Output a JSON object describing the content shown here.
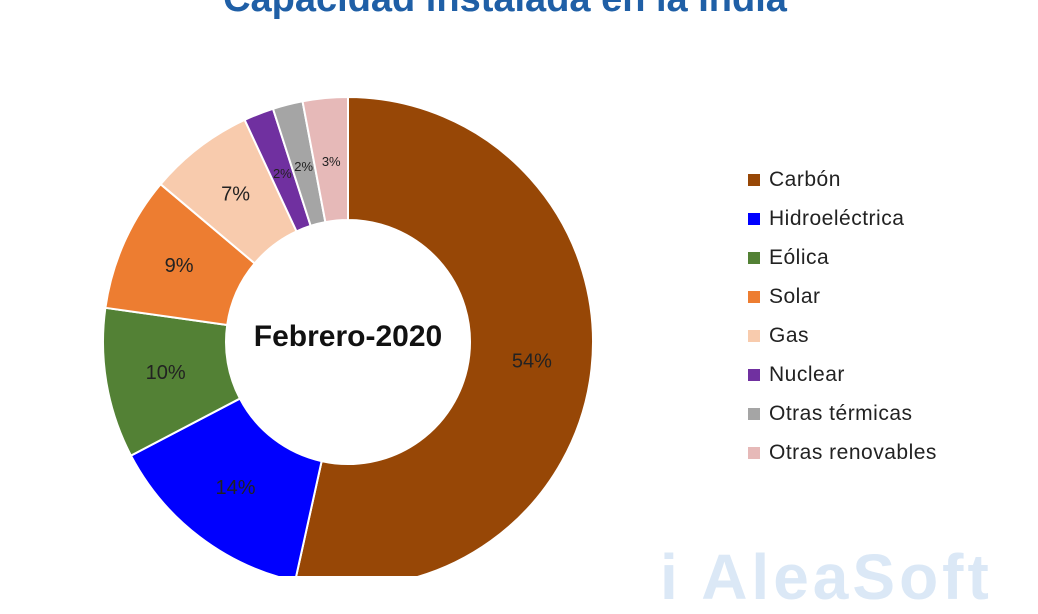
{
  "title": "Capacidad instalada en la India",
  "center_label": "Febrero-2020",
  "watermark_text": "i AleaSoft",
  "chart_data": {
    "type": "pie",
    "style": "donut",
    "title": "Capacidad instalada en la India",
    "center_label": "Febrero-2020",
    "legend_position": "right",
    "slices": [
      {
        "name": "Carbón",
        "value": 54,
        "label": "54%",
        "color": "#974706"
      },
      {
        "name": "Hidroeléctrica",
        "value": 14,
        "label": "14%",
        "color": "#0000ff"
      },
      {
        "name": "Eólica",
        "value": 10,
        "label": "10%",
        "color": "#538135"
      },
      {
        "name": "Solar",
        "value": 9,
        "label": "9%",
        "color": "#ed7d31"
      },
      {
        "name": "Gas",
        "value": 7,
        "label": "7%",
        "color": "#f8cbad"
      },
      {
        "name": "Nuclear",
        "value": 2,
        "label": "2%",
        "color": "#7030a0"
      },
      {
        "name": "Otras térmicas",
        "value": 2,
        "label": "2%",
        "color": "#a5a5a5"
      },
      {
        "name": "Otras renovables",
        "value": 3,
        "label": "3%",
        "color": "#e6b9b8"
      }
    ]
  }
}
